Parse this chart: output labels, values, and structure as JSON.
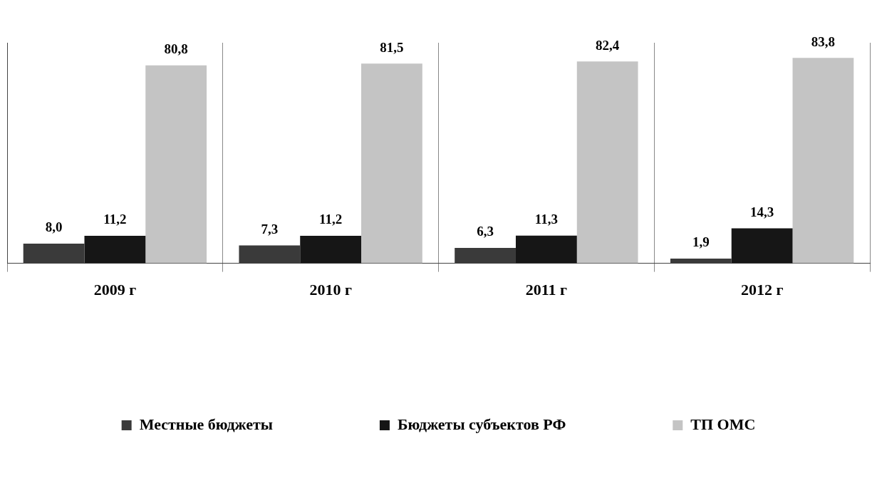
{
  "chart_data": {
    "type": "bar",
    "categories": [
      "2009 г",
      "2010 г",
      "2011 г",
      "2012 г"
    ],
    "series": [
      {
        "name": "Местные бюджеты",
        "color": "#3a3a3a",
        "values": [
          8.0,
          7.3,
          6.3,
          1.9
        ],
        "value_labels": [
          "8,0",
          "7,3",
          "6,3",
          "1,9"
        ]
      },
      {
        "name": "Бюджеты субъектов РФ",
        "color": "#161616",
        "values": [
          11.2,
          11.2,
          11.3,
          14.3
        ],
        "value_labels": [
          "11,2",
          "11,2",
          "11,3",
          "14,3"
        ]
      },
      {
        "name": "ТП ОМС",
        "color": "#c4c4c4",
        "values": [
          80.8,
          81.5,
          82.4,
          83.8
        ],
        "value_labels": [
          "80,8",
          "81,5",
          "82,4",
          "83,8"
        ]
      }
    ],
    "legend": "bottom",
    "grid": "x",
    "tick_labels": "x"
  }
}
